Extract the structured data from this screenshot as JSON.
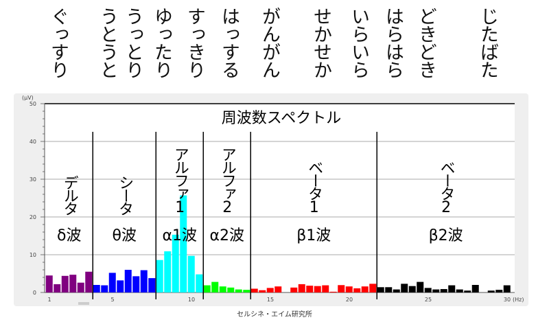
{
  "mood_words": [
    "ぐっすり",
    "うとうと",
    "うっとり",
    "ゆったり",
    "すっきり",
    "はっする",
    "がんがん",
    "せかせか",
    "いらいら",
    "はらはら",
    "どきどき",
    "じたばた"
  ],
  "credit": "セルシネ・エイム研究所",
  "chart_data": {
    "type": "bar",
    "title": "周波数スペクトル",
    "ylabel": "(μV)",
    "xlabel": "(Hz)",
    "ylim": [
      0,
      50
    ],
    "xlim": [
      1,
      30
    ],
    "yticks": [
      "0",
      "10",
      "20",
      "30",
      "40",
      "50"
    ],
    "xticks": [
      "1",
      "5",
      "10",
      "15",
      "20",
      "25",
      "30"
    ],
    "grid": true,
    "bin_width_hz": 0.5,
    "bands": [
      {
        "name": "デルタ",
        "symbol": "δ波",
        "color": "#800080",
        "from": 1,
        "to": 3.5,
        "values": [
          4.5,
          2.2,
          4.4,
          4.7,
          2.6,
          5.5
        ]
      },
      {
        "name": "シータ",
        "symbol": "θ波",
        "color": "#0000ff",
        "from": 4,
        "to": 7.5,
        "values": [
          2.0,
          1.9,
          5.2,
          3.2,
          6.0,
          4.3,
          5.9,
          3.8
        ]
      },
      {
        "name": "アルファ1",
        "symbol": "α1波",
        "color": "#00ffff",
        "from": 8,
        "to": 10.5,
        "values": [
          8.6,
          10.9,
          15.3,
          25.7,
          9.7,
          4.8
        ]
      },
      {
        "name": "アルファ2",
        "symbol": "α2波",
        "color": "#00ff00",
        "from": 11,
        "to": 13.5,
        "values": [
          1.9,
          2.8,
          1.6,
          1.3,
          0.8,
          0.7
        ]
      },
      {
        "name": "ベータ1",
        "symbol": "β1波",
        "color": "#ff0000",
        "from": 14,
        "to": 21.5,
        "values": [
          1.0,
          0.6,
          1.2,
          1.6,
          0,
          1.3,
          2.2,
          1.8,
          1.7,
          1.9,
          0.2,
          1.95,
          1.6,
          1.1,
          1.6,
          2.3
        ]
      },
      {
        "name": "ベータ2",
        "symbol": "β2波",
        "color": "#000000",
        "from": 22,
        "to": 30,
        "values": [
          1.4,
          1.4,
          0.8,
          2.3,
          1.7,
          2.8,
          1.2,
          0.8,
          0.9,
          1.9,
          0.8,
          0.5,
          2.0,
          0,
          0.5,
          0.7,
          1.9
        ]
      }
    ]
  }
}
